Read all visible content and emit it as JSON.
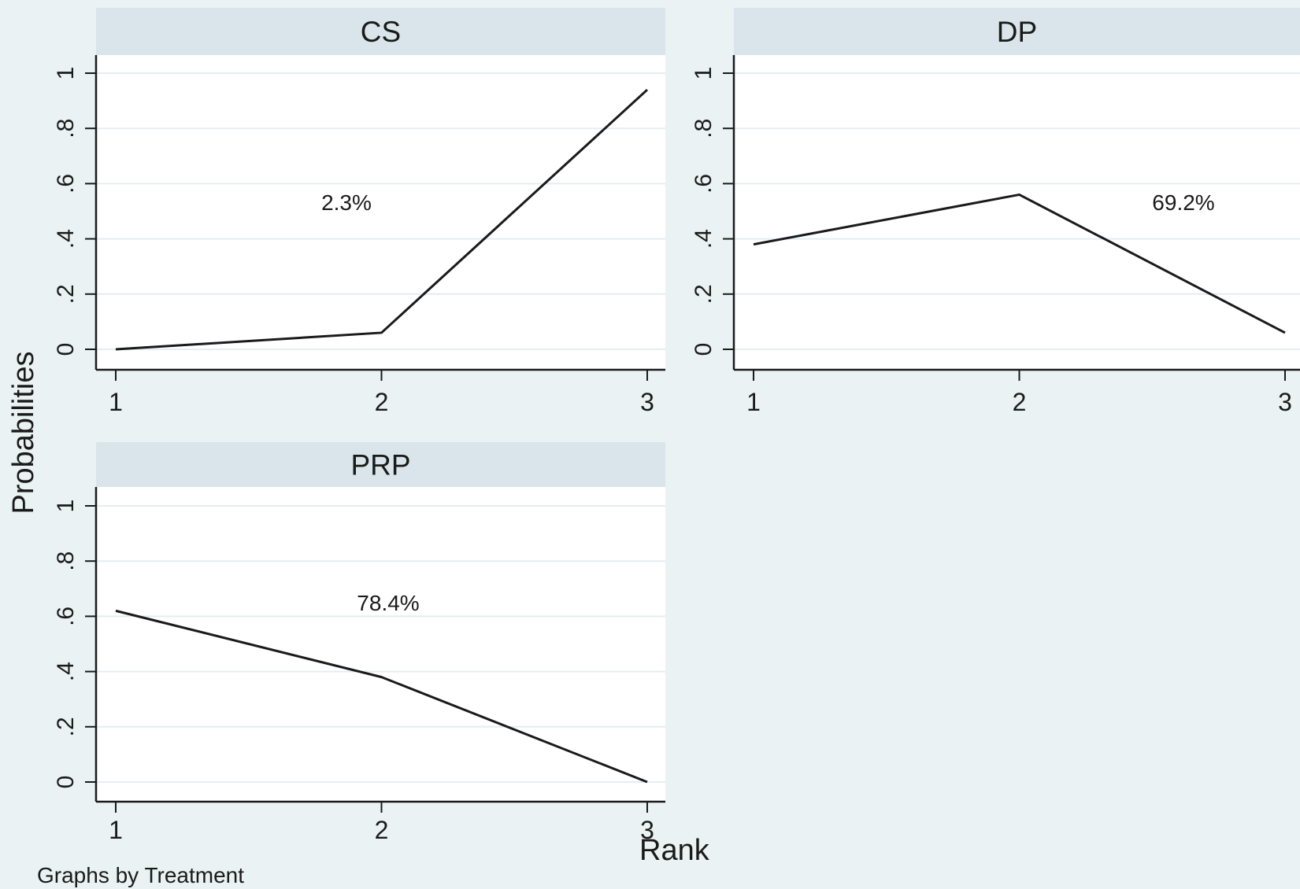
{
  "figure": {
    "ylabel": "Probabilities",
    "xlabel": "Rank",
    "note": "Graphs by Treatment"
  },
  "colors": {
    "outer_background": "#eaf2f3",
    "plot_background": "#ffffff",
    "strip_background": "#d9e5ea",
    "gridline": "#e4eef0",
    "line": "#1a1a1a",
    "axis": "#1a1a1a"
  },
  "chart_data": [
    {
      "type": "line",
      "title": "CS",
      "x": [
        1,
        2,
        3
      ],
      "y": [
        0.0,
        0.06,
        0.94
      ],
      "annotation": "2.3%",
      "xticks": [
        "1",
        "2",
        "3"
      ],
      "yticks": [
        "0",
        ".2",
        ".4",
        ".6",
        ".8",
        "1"
      ],
      "xlim": [
        1,
        3
      ],
      "ylim": [
        0,
        1
      ],
      "grid": true
    },
    {
      "type": "line",
      "title": "DP",
      "x": [
        1,
        2,
        3
      ],
      "y": [
        0.38,
        0.56,
        0.06
      ],
      "annotation": "69.2%",
      "xticks": [
        "1",
        "2",
        "3"
      ],
      "yticks": [
        "0",
        ".2",
        ".4",
        ".6",
        ".8",
        "1"
      ],
      "xlim": [
        1,
        3
      ],
      "ylim": [
        0,
        1
      ],
      "grid": true
    },
    {
      "type": "line",
      "title": "PRP",
      "x": [
        1,
        2,
        3
      ],
      "y": [
        0.62,
        0.38,
        0.0
      ],
      "annotation": "78.4%",
      "xticks": [
        "1",
        "2",
        "3"
      ],
      "yticks": [
        "0",
        ".2",
        ".4",
        ".6",
        ".8",
        "1"
      ],
      "xlim": [
        1,
        3
      ],
      "ylim": [
        0,
        1
      ],
      "grid": true
    }
  ]
}
